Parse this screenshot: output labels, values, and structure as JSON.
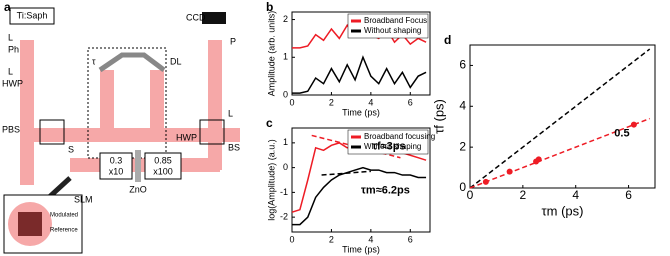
{
  "diagram": {
    "label": "a",
    "laser": "Ti:Saph",
    "lens_top": "L",
    "pinhole": "Ph",
    "lens_2": "L",
    "hwp_left": "HWP",
    "pbs": "PBS",
    "shutter": "S",
    "slm": "SLM",
    "delay_line": "DL",
    "tau": "τ",
    "lens_right": "L",
    "bs": "BS",
    "hwp_bottom": "HWP",
    "polarizer": "P",
    "ccd": "CCD",
    "obj1_na": "0.3",
    "obj1_mag": "x10",
    "sample": "ZnO",
    "obj2_na": "0.85",
    "obj2_mag": "x100",
    "inset_modulated": "Modulated",
    "inset_reference": "Reference"
  },
  "chart_data": [
    {
      "type": "line",
      "label": "b",
      "xlabel": "Time (ps)",
      "ylabel": "Amplitude (arb. units)",
      "xlim": [
        0,
        7
      ],
      "ylim": [
        0,
        2.2
      ],
      "xticks": [
        0,
        2,
        4,
        6
      ],
      "yticks": [
        0,
        1,
        2
      ],
      "legend": "upper right",
      "x": [
        0,
        0.4,
        0.8,
        1.2,
        1.6,
        2,
        2.4,
        2.8,
        3.2,
        3.6,
        4,
        4.4,
        4.8,
        5.2,
        5.6,
        6,
        6.4,
        6.8
      ],
      "series": [
        {
          "name": "Broadband Focus",
          "color": "#ee1c25",
          "values": [
            1.25,
            1.25,
            1.3,
            1.6,
            1.45,
            1.75,
            1.5,
            1.85,
            1.55,
            2.0,
            1.6,
            1.5,
            1.75,
            1.4,
            1.6,
            1.35,
            1.5,
            1.4
          ]
        },
        {
          "name": "Without shaping",
          "color": "#000000",
          "values": [
            0.05,
            0.05,
            0.1,
            0.45,
            0.3,
            0.7,
            0.35,
            0.8,
            0.4,
            1.0,
            0.5,
            0.3,
            0.7,
            0.3,
            0.6,
            0.2,
            0.5,
            0.6
          ]
        }
      ]
    },
    {
      "type": "line",
      "label": "c",
      "xlabel": "Time (ps)",
      "ylabel": "log(Amplitude) (a.u.)",
      "xlim": [
        0,
        7
      ],
      "ylim": [
        -2.6,
        1.6
      ],
      "xticks": [
        0,
        2,
        4,
        6
      ],
      "yticks": [
        -2,
        -1,
        0,
        1
      ],
      "legend": "upper right",
      "x": [
        0,
        0.4,
        0.8,
        1.2,
        1.6,
        2,
        2.4,
        2.8,
        3.2,
        3.6,
        4,
        4.4,
        4.8,
        5.2,
        5.6,
        6,
        6.4,
        6.8
      ],
      "series": [
        {
          "name": "Broadband focusing",
          "color": "#ee1c25",
          "values": [
            -1.8,
            -1.7,
            -0.5,
            0.8,
            0.7,
            0.9,
            1.0,
            0.8,
            0.9,
            1.0,
            0.9,
            0.8,
            0.7,
            0.7,
            0.6,
            0.5,
            0.4,
            0.3
          ]
        },
        {
          "name": "Without shaping",
          "color": "#000000",
          "values": [
            -2.3,
            -2.3,
            -2.0,
            -1.2,
            -0.8,
            -0.5,
            -0.3,
            -0.2,
            -0.1,
            0,
            -0.1,
            -0.1,
            -0.2,
            -0.2,
            -0.3,
            -0.3,
            -0.4,
            -0.4
          ]
        }
      ],
      "fit_lines": [
        {
          "color": "#ee1c25",
          "x": [
            1,
            5.5
          ],
          "values": [
            1.3,
            0.4
          ]
        },
        {
          "color": "#000000",
          "x": [
            1.5,
            4
          ],
          "values": [
            -0.3,
            -0.15
          ]
        }
      ],
      "annotations": [
        {
          "text": "τf≈3ps",
          "color": "#ee1c25"
        },
        {
          "text": "τm≈6.2ps",
          "color": "#000000"
        }
      ]
    },
    {
      "type": "scatter",
      "label": "d",
      "xlabel": "τm (ps)",
      "ylabel": "τf (ps)",
      "xlim": [
        0,
        7
      ],
      "ylim": [
        0,
        7
      ],
      "xticks": [
        0,
        2,
        4,
        6
      ],
      "yticks": [
        0,
        2,
        4,
        6
      ],
      "color": "#ee1c25",
      "x": [
        0.6,
        1.5,
        2.5,
        2.6,
        6.2
      ],
      "values": [
        0.3,
        0.8,
        1.3,
        1.4,
        3.1
      ],
      "fit_lines": [
        {
          "color": "#000000",
          "x": [
            0,
            6.8
          ],
          "values": [
            0,
            6.8
          ]
        },
        {
          "color": "#ee1c25",
          "x": [
            0,
            6.8
          ],
          "values": [
            0,
            3.4
          ]
        }
      ],
      "annotations": [
        {
          "text": "0.5",
          "color": "#ee1c25"
        }
      ]
    }
  ]
}
